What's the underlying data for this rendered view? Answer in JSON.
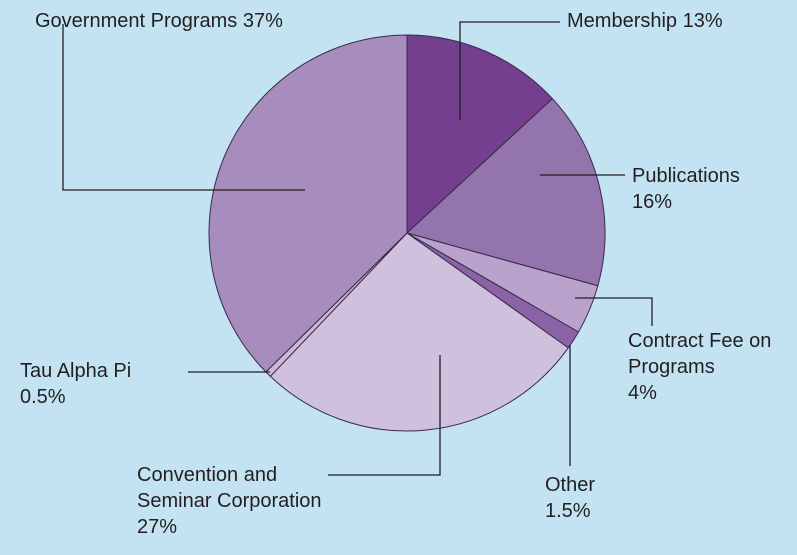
{
  "chart_data": {
    "type": "pie",
    "categories": [
      "Membership",
      "Publications",
      "Contract Fee on Programs",
      "Other",
      "Convention and Seminar Corporation",
      "Tau Alpha Pi",
      "Government Programs"
    ],
    "values": [
      13,
      16,
      4,
      1.5,
      27,
      0.5,
      37
    ],
    "value_labels": [
      "13%",
      "16%",
      "4%",
      "1.5%",
      "27%",
      "0.5%",
      "37%"
    ],
    "colors": [
      "#733f8e",
      "#9474ad",
      "#b9a3cc",
      "#8a62a6",
      "#cfc1dd",
      "#c9b8d8",
      "#a78dbd"
    ]
  }
}
